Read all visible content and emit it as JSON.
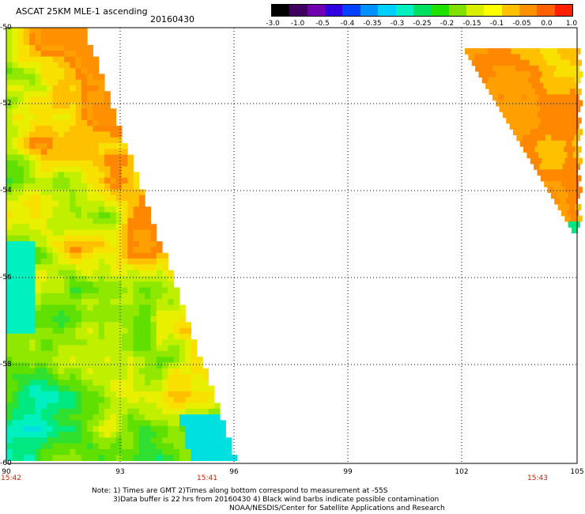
{
  "header": {
    "title": "ASCAT 25KM MLE-1 ascending",
    "date": "20160430"
  },
  "colorbar": {
    "ticks": [
      "-3.0",
      "-1.0",
      "-0.5",
      "-0.4",
      "-0.35",
      "-0.3",
      "-0.25",
      "-0.2",
      "-0.15",
      "-0.1",
      "-0.05",
      "0.0",
      "1.0"
    ],
    "colors": [
      "#000000",
      "#400060",
      "#7000b0",
      "#3000e0",
      "#0040ff",
      "#0090ff",
      "#00d0ff",
      "#00f0c0",
      "#00e060",
      "#20e000",
      "#80e000",
      "#d8f000",
      "#ffff00",
      "#ffc000",
      "#ff9000",
      "#ff6000",
      "#ff2000"
    ]
  },
  "map": {
    "y_labels": [
      "-50",
      "-52",
      "-54",
      "-56",
      "-58",
      "-60"
    ],
    "x_labels": [
      "90",
      "93",
      "96",
      "99",
      "102",
      "105"
    ],
    "time_labels": [
      "15:42",
      "15:41",
      "15:43"
    ],
    "lon_range": [
      90,
      105
    ],
    "lat_range": [
      -60,
      -50
    ]
  },
  "notes": {
    "line1": "Note: 1) Times are GMT 2)Times along bottom correspond to measurement at -55S",
    "line2": "3)Data buffer is 22 hrs from 20160430 4) Black wind barbs indicate possible contamination",
    "line3": "NOAA/NESDIS/Center for Satellite Applications and Research"
  }
}
